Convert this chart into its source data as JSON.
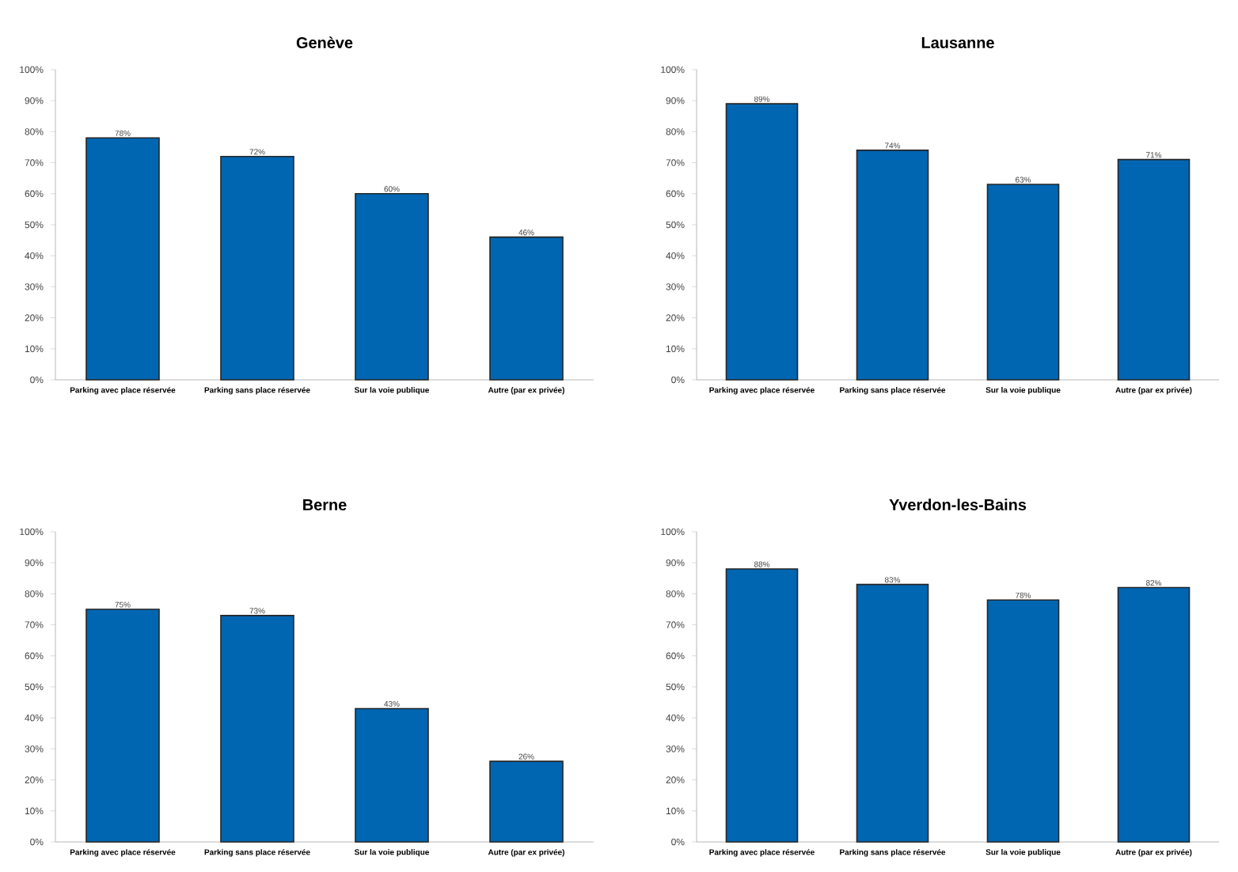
{
  "chart_data": [
    {
      "type": "bar",
      "title": "Genève",
      "categories": [
        "Parking avec place réservée",
        "Parking sans place réservée",
        "Sur la voie publique",
        "Autre (par ex privée)"
      ],
      "values": [
        78,
        72,
        60,
        46
      ],
      "value_labels": [
        "78%",
        "72%",
        "60%",
        "46%"
      ],
      "color": "#0066b2",
      "ylim": [
        0,
        100
      ],
      "yticks": [
        {
          "value": 0,
          "label": "0%"
        },
        {
          "value": 10,
          "label": "10%"
        },
        {
          "value": 20,
          "label": "20%"
        },
        {
          "value": 30,
          "label": "30%"
        },
        {
          "value": 40,
          "label": "40%"
        },
        {
          "value": 50,
          "label": "50%"
        },
        {
          "value": 60,
          "label": "60%"
        },
        {
          "value": 70,
          "label": "70%"
        },
        {
          "value": 80,
          "label": "80%"
        },
        {
          "value": 90,
          "label": "90%"
        },
        {
          "value": 100,
          "label": "100%"
        }
      ]
    },
    {
      "type": "bar",
      "title": "Lausanne",
      "categories": [
        "Parking avec place réservée",
        "Parking sans place réservée",
        "Sur la voie publique",
        "Autre (par ex privée)"
      ],
      "values": [
        89,
        74,
        63,
        71
      ],
      "value_labels": [
        "89%",
        "74%",
        "63%",
        "71%"
      ],
      "color": "#0066b2",
      "ylim": [
        0,
        100
      ],
      "yticks": [
        {
          "value": 0,
          "label": "0%"
        },
        {
          "value": 10,
          "label": "10%"
        },
        {
          "value": 20,
          "label": "20%"
        },
        {
          "value": 30,
          "label": "30%"
        },
        {
          "value": 40,
          "label": "40%"
        },
        {
          "value": 50,
          "label": "50%"
        },
        {
          "value": 60,
          "label": "60%"
        },
        {
          "value": 70,
          "label": "70%"
        },
        {
          "value": 80,
          "label": "80%"
        },
        {
          "value": 90,
          "label": "90%"
        },
        {
          "value": 100,
          "label": "100%"
        }
      ]
    },
    {
      "type": "bar",
      "title": "Berne",
      "categories": [
        "Parking avec place réservée",
        "Parking sans place réservée",
        "Sur la voie publique",
        "Autre (par ex privée)"
      ],
      "values": [
        75,
        73,
        43,
        26
      ],
      "value_labels": [
        "75%",
        "73%",
        "43%",
        "26%"
      ],
      "color": "#0066b2",
      "ylim": [
        0,
        100
      ],
      "yticks": [
        {
          "value": 0,
          "label": "0%"
        },
        {
          "value": 10,
          "label": "10%"
        },
        {
          "value": 20,
          "label": "20%"
        },
        {
          "value": 30,
          "label": "30%"
        },
        {
          "value": 40,
          "label": "40%"
        },
        {
          "value": 50,
          "label": "50%"
        },
        {
          "value": 60,
          "label": "60%"
        },
        {
          "value": 70,
          "label": "70%"
        },
        {
          "value": 80,
          "label": "80%"
        },
        {
          "value": 90,
          "label": "90%"
        },
        {
          "value": 100,
          "label": "100%"
        }
      ]
    },
    {
      "type": "bar",
      "title": "Yverdon-les-Bains",
      "categories": [
        "Parking avec place réservée",
        "Parking sans place réservée",
        "Sur la voie publique",
        "Autre (par ex privée)"
      ],
      "values": [
        88,
        83,
        78,
        82
      ],
      "value_labels": [
        "88%",
        "83%",
        "78%",
        "82%"
      ],
      "color": "#0066b2",
      "ylim": [
        0,
        100
      ],
      "yticks": [
        {
          "value": 0,
          "label": "0%"
        },
        {
          "value": 10,
          "label": "10%"
        },
        {
          "value": 20,
          "label": "20%"
        },
        {
          "value": 30,
          "label": "30%"
        },
        {
          "value": 40,
          "label": "40%"
        },
        {
          "value": 50,
          "label": "50%"
        },
        {
          "value": 60,
          "label": "60%"
        },
        {
          "value": 70,
          "label": "70%"
        },
        {
          "value": 80,
          "label": "80%"
        },
        {
          "value": 90,
          "label": "90%"
        },
        {
          "value": 100,
          "label": "100%"
        }
      ]
    }
  ]
}
